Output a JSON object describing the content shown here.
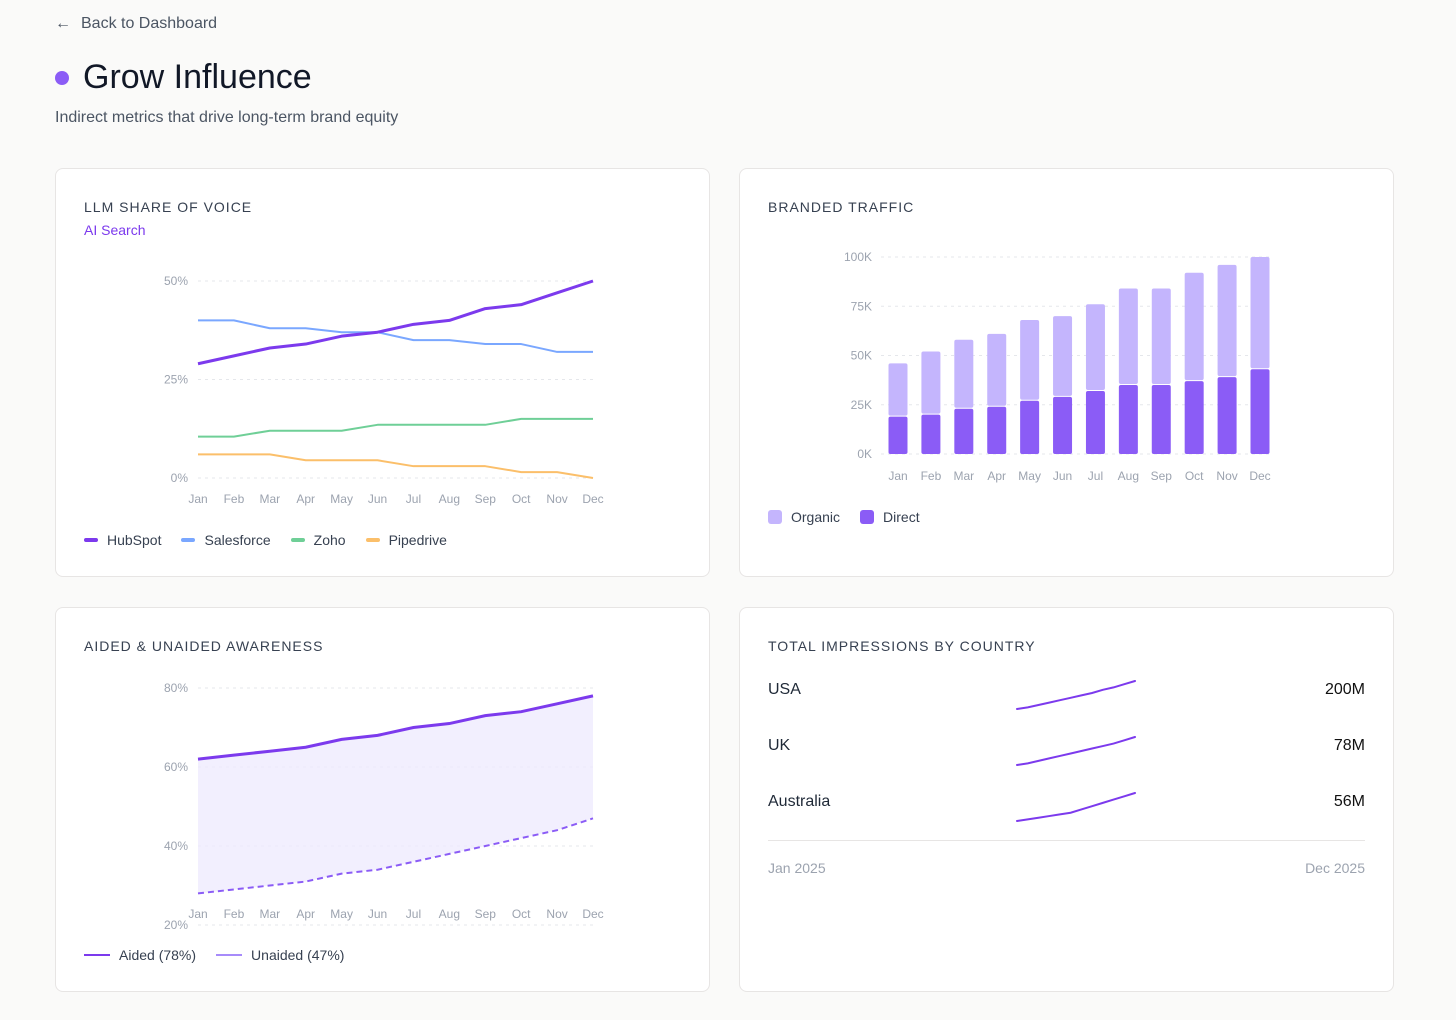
{
  "nav": {
    "back_label": "Back to Dashboard"
  },
  "header": {
    "title": "Grow Influence",
    "subtitle": "Indirect metrics that drive long-term brand equity",
    "accent": "#8b5cf6"
  },
  "chart_data": [
    {
      "id": "llm",
      "type": "line",
      "title": "LLM SHARE OF VOICE",
      "subtitle": "AI Search",
      "categories": [
        "Jan",
        "Feb",
        "Mar",
        "Apr",
        "May",
        "Jun",
        "Jul",
        "Aug",
        "Sep",
        "Oct",
        "Nov",
        "Dec"
      ],
      "yticks": [
        "0%",
        "25%",
        "50%"
      ],
      "ylim": [
        0,
        50
      ],
      "series": [
        {
          "name": "HubSpot",
          "color": "#7c3aed",
          "values": [
            29,
            31,
            33,
            34,
            36,
            37,
            39,
            40,
            43,
            44,
            47,
            50
          ]
        },
        {
          "name": "Salesforce",
          "color": "#7aa7ff",
          "values": [
            40,
            40,
            38,
            38,
            37,
            37,
            35,
            35,
            34,
            34,
            32,
            32
          ]
        },
        {
          "name": "Zoho",
          "color": "#6fcf97",
          "values": [
            10.5,
            10.5,
            12,
            12,
            12,
            13.5,
            13.5,
            13.5,
            13.5,
            15,
            15,
            15
          ]
        },
        {
          "name": "Pipedrive",
          "color": "#fbbf6a",
          "values": [
            6,
            6,
            6,
            4.5,
            4.5,
            4.5,
            3,
            3,
            3,
            1.5,
            1.5,
            0
          ]
        }
      ]
    },
    {
      "id": "traffic",
      "type": "bar",
      "stacked": true,
      "title": "BRANDED TRAFFIC",
      "categories": [
        "Jan",
        "Feb",
        "Mar",
        "Apr",
        "May",
        "Jun",
        "Jul",
        "Aug",
        "Sep",
        "Oct",
        "Nov",
        "Dec"
      ],
      "yticks": [
        "0K",
        "25K",
        "50K",
        "75K",
        "100K"
      ],
      "ylim": [
        0,
        100
      ],
      "series": [
        {
          "name": "Direct",
          "color": "#8b5cf6",
          "values": [
            19,
            20,
            23,
            24,
            27,
            29,
            32,
            35,
            35,
            37,
            39,
            43
          ]
        },
        {
          "name": "Organic",
          "color": "#c4b5fd",
          "values": [
            27,
            32,
            35,
            37,
            41,
            41,
            44,
            49,
            49,
            55,
            57,
            57
          ]
        }
      ]
    },
    {
      "id": "awareness",
      "type": "area",
      "title": "AIDED & UNAIDED AWARENESS",
      "categories": [
        "Jan",
        "Feb",
        "Mar",
        "Apr",
        "May",
        "Jun",
        "Jul",
        "Aug",
        "Sep",
        "Oct",
        "Nov",
        "Dec"
      ],
      "yticks": [
        "20%",
        "40%",
        "60%",
        "80%"
      ],
      "ylim": [
        20,
        80
      ],
      "series": [
        {
          "name": "Aided (78%)",
          "color": "#7c3aed",
          "values": [
            62,
            63,
            64,
            65,
            67,
            68,
            70,
            71,
            73,
            74,
            76,
            78
          ]
        },
        {
          "name": "Unaided (47%)",
          "color": "#8b5cf6",
          "values": [
            28,
            29,
            30,
            31,
            33,
            34,
            36,
            38,
            40,
            42,
            44,
            47
          ]
        }
      ]
    }
  ],
  "impressions": {
    "title": "TOTAL IMPRESSIONS BY COUNTRY",
    "start": "Jan 2025",
    "end": "Dec 2025",
    "rows": [
      {
        "country": "USA",
        "value": "200M",
        "trend": [
          0,
          2,
          5,
          8,
          11,
          14,
          17,
          20,
          24,
          27,
          31,
          35
        ]
      },
      {
        "country": "UK",
        "value": "78M",
        "trend": [
          0,
          2,
          5,
          8,
          11,
          14,
          17,
          20,
          23,
          26,
          30,
          34
        ]
      },
      {
        "country": "Australia",
        "value": "56M",
        "trend": [
          0,
          2,
          4,
          6,
          8,
          10,
          14,
          18,
          22,
          26,
          30,
          34
        ]
      }
    ]
  }
}
